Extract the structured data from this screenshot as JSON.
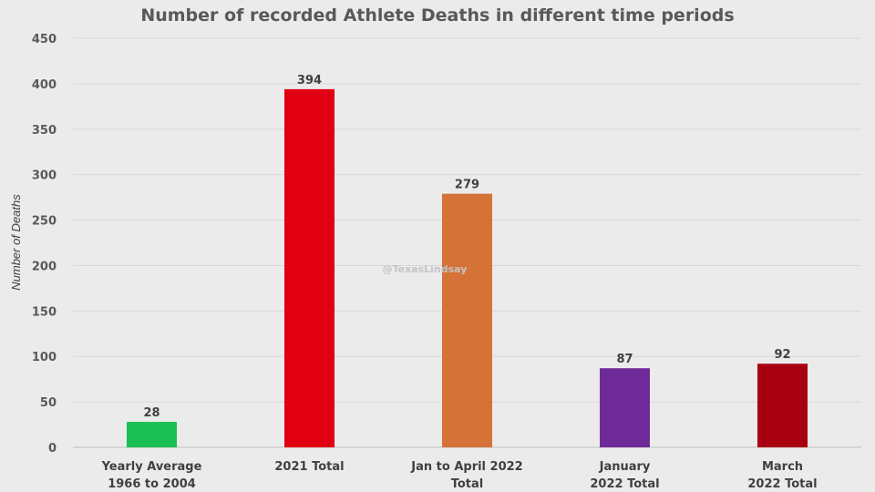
{
  "chart_data": {
    "type": "bar",
    "title": "Number of recorded Athlete Deaths in different time periods",
    "xlabel": "",
    "ylabel": "Number of Deaths",
    "ylim": [
      0,
      450
    ],
    "yticks": [
      0,
      50,
      100,
      150,
      200,
      250,
      300,
      350,
      400,
      450
    ],
    "grid": true,
    "categories": [
      [
        "Yearly Average",
        "1966 to 2004"
      ],
      [
        "2021 Total"
      ],
      [
        "Jan to April 2022",
        "Total"
      ],
      [
        "January",
        "2022 Total"
      ],
      [
        "March",
        "2022 Total"
      ]
    ],
    "values": [
      28,
      394,
      279,
      87,
      92
    ],
    "colors": [
      "#1cbf53",
      "#e00012",
      "#d57237",
      "#6f2a99",
      "#a80010"
    ],
    "watermark": "@TexasLindsay"
  }
}
